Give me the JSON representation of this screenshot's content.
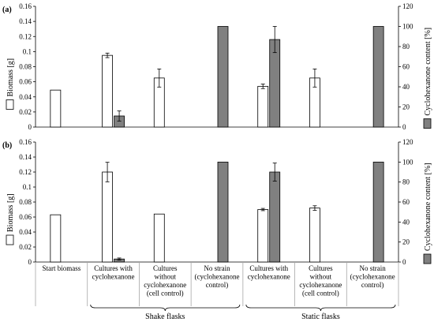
{
  "colors": {
    "biomass": "#ffffff",
    "cyclohexanone": "#808080",
    "bar_stroke": "#000000",
    "axis": "#000000",
    "grid": "#d9d9d9",
    "table": "#a6a6a6"
  },
  "axes": {
    "left_label": "Biomass [g]",
    "right_label": "Cyclohexanone content [%]"
  },
  "table": {
    "columns": [
      [
        "Start biomass"
      ],
      [
        "Cultures with",
        "cyclohexanone"
      ],
      [
        "Cultures",
        "without",
        "cyclohexanone",
        "(cell control)"
      ],
      [
        "No strain",
        "(cyclohexanone",
        "control)"
      ],
      [
        "Cultures with",
        "cyclohexanone"
      ],
      [
        "Cultures",
        "without",
        "cyclohexanone",
        "(cell control)"
      ],
      [
        "No strain",
        "(cyclohexanone",
        "control)"
      ]
    ],
    "groups": [
      {
        "label": "Shake flasks",
        "span": [
          1,
          3
        ]
      },
      {
        "label": "Static flasks",
        "span": [
          4,
          6
        ]
      }
    ]
  },
  "chart_data": [
    {
      "type": "bar",
      "panel_label": "(a)",
      "categories": [
        "Start biomass",
        "Cultures with cyclohexanone (Shake flasks)",
        "Cultures without cyclohexanone (cell control) (Shake flasks)",
        "No strain (cyclohexanone control) (Shake flasks)",
        "Cultures with cyclohexanone (Static flasks)",
        "Cultures without cyclohexanone (cell control) (Static flasks)",
        "No strain (cyclohexanone control) (Static flasks)"
      ],
      "series": [
        {
          "axis": "left",
          "values": [
            0.049,
            0.095,
            0.065,
            null,
            0.054,
            0.065,
            null
          ],
          "errors": [
            null,
            0.003,
            0.012,
            null,
            0.003,
            0.012,
            null
          ]
        },
        {
          "axis": "right",
          "values": [
            null,
            11,
            null,
            100,
            87,
            null,
            100
          ],
          "errors": [
            null,
            5,
            null,
            null,
            13,
            null,
            null
          ]
        }
      ],
      "ylim": [
        0,
        0.16
      ],
      "yticks": [
        "0",
        "0.02",
        "0.04",
        "0.06",
        "0.08",
        "0.1",
        "0.12",
        "0.14",
        "0.16"
      ],
      "y2lim": [
        0,
        120
      ],
      "y2ticks": [
        "0",
        "20",
        "40",
        "60",
        "80",
        "100",
        "120"
      ],
      "grid": false
    },
    {
      "type": "bar",
      "panel_label": "(b)",
      "categories": [
        "Start biomass",
        "Cultures with cyclohexanone (Shake flasks)",
        "Cultures without cyclohexanone (cell control) (Shake flasks)",
        "No strain (cyclohexanone control) (Shake flasks)",
        "Cultures with cyclohexanone (Static flasks)",
        "Cultures without cyclohexanone (cell control) (Static flasks)",
        "No strain (cyclohexanone control) (Static flasks)"
      ],
      "series": [
        {
          "axis": "left",
          "values": [
            0.063,
            0.12,
            0.064,
            null,
            0.07,
            0.072,
            null
          ],
          "errors": [
            null,
            0.013,
            null,
            null,
            0.0015,
            0.003,
            null
          ]
        },
        {
          "axis": "right",
          "values": [
            null,
            3,
            null,
            100,
            90,
            null,
            100
          ],
          "errors": [
            null,
            1,
            null,
            null,
            9,
            null,
            null
          ]
        }
      ],
      "ylim": [
        0,
        0.16
      ],
      "yticks": [
        "0",
        "0.02",
        "0.04",
        "0.06",
        "0.08",
        "0.1",
        "0.12",
        "0.14",
        "0.16"
      ],
      "y2lim": [
        0,
        120
      ],
      "y2ticks": [
        "0",
        "20",
        "40",
        "60",
        "80",
        "100",
        "120"
      ],
      "grid": false
    }
  ]
}
